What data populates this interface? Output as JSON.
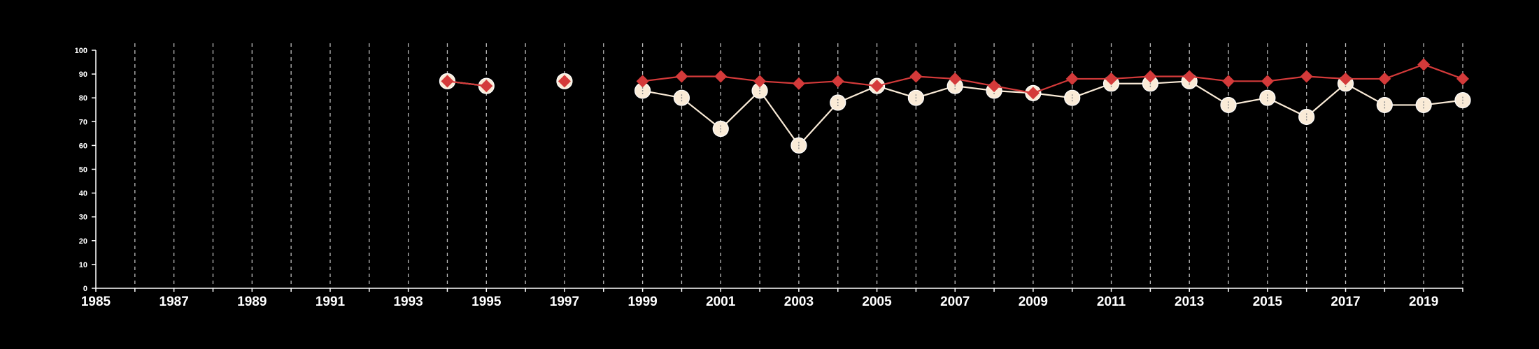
{
  "chart_data": {
    "type": "line",
    "title": "",
    "xlabel": "",
    "ylabel": "",
    "xlim": [
      1985,
      2020
    ],
    "ylim": [
      0,
      100
    ],
    "grid": "vertical-dashed",
    "legend": "none",
    "x_ticks": [
      1985,
      1987,
      1989,
      1991,
      1993,
      1995,
      1997,
      1999,
      2001,
      2003,
      2005,
      2007,
      2009,
      2011,
      2013,
      2015,
      2017,
      2019
    ],
    "y_ticks": [
      0,
      10,
      20,
      30,
      40,
      50,
      60,
      70,
      80,
      90,
      100
    ],
    "series": [
      {
        "marker": "circle",
        "color": "#faebd7",
        "points": [
          [
            1994,
            87
          ],
          [
            1995,
            85
          ],
          [
            1997,
            87
          ],
          [
            1999,
            83
          ],
          [
            2000,
            80
          ],
          [
            2001,
            67
          ],
          [
            2002,
            83
          ],
          [
            2003,
            60
          ],
          [
            2004,
            78
          ],
          [
            2005,
            85
          ],
          [
            2006,
            80
          ],
          [
            2007,
            85
          ],
          [
            2008,
            83
          ],
          [
            2009,
            82
          ],
          [
            2010,
            80
          ],
          [
            2011,
            86
          ],
          [
            2012,
            86
          ],
          [
            2013,
            87
          ],
          [
            2014,
            77
          ],
          [
            2015,
            80
          ],
          [
            2016,
            72
          ],
          [
            2017,
            86
          ],
          [
            2018,
            77
          ],
          [
            2019,
            77
          ],
          [
            2020,
            79
          ]
        ]
      },
      {
        "marker": "diamond",
        "color": "#d43a3a",
        "points": [
          [
            1994,
            87
          ],
          [
            1995,
            85
          ],
          [
            1997,
            87
          ],
          [
            1999,
            87
          ],
          [
            2000,
            89
          ],
          [
            2001,
            89
          ],
          [
            2002,
            87
          ],
          [
            2003,
            86
          ],
          [
            2004,
            87
          ],
          [
            2005,
            85
          ],
          [
            2006,
            89
          ],
          [
            2007,
            88
          ],
          [
            2008,
            85
          ],
          [
            2009,
            82
          ],
          [
            2010,
            88
          ],
          [
            2011,
            88
          ],
          [
            2012,
            89
          ],
          [
            2013,
            89
          ],
          [
            2014,
            87
          ],
          [
            2015,
            87
          ],
          [
            2016,
            89
          ],
          [
            2017,
            88
          ],
          [
            2018,
            88
          ],
          [
            2019,
            94
          ],
          [
            2020,
            88
          ]
        ]
      }
    ]
  }
}
